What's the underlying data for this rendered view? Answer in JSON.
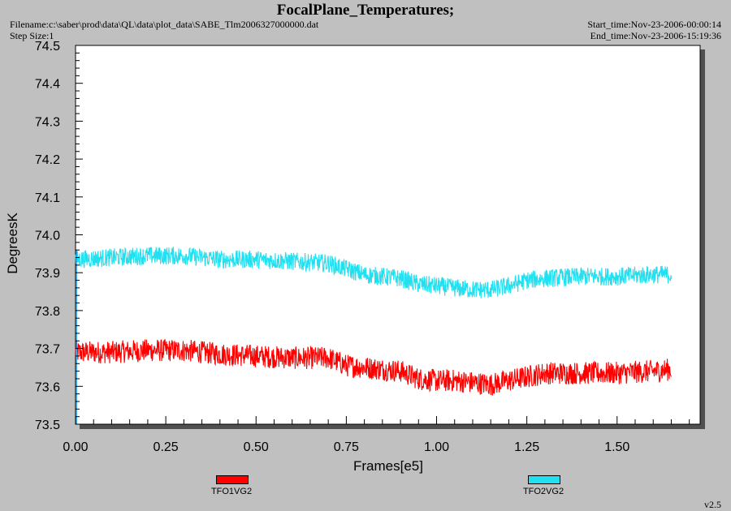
{
  "header": {
    "title": "FocalPlane_Temperatures;",
    "filename": "Filename:c:\\saber\\prod\\data\\QL\\data\\plot_data\\SABE_Tlm2006327000000.dat",
    "step_size": "Step Size:1",
    "start_time": "Start_time:Nov-23-2006-00:00:14",
    "end_time": "End_time:Nov-23-2006-15:19:36",
    "version": "v2.5"
  },
  "chart_data": {
    "type": "line",
    "title": "FocalPlane_Temperatures;",
    "xlabel": "Frames[e5]",
    "ylabel": "DegreesK",
    "xlim": [
      0,
      1.73
    ],
    "ylim": [
      73.5,
      74.5
    ],
    "xticks": [
      "0.00",
      "0.25",
      "0.50",
      "0.75",
      "1.00",
      "1.25",
      "1.50"
    ],
    "yticks": [
      "73.5",
      "73.6",
      "73.7",
      "73.8",
      "73.9",
      "74.0",
      "74.1",
      "74.2",
      "74.3",
      "74.4",
      "74.5"
    ],
    "grid": false,
    "legend_position": "bottom",
    "series": [
      {
        "name": "TFO1VG2",
        "color": "#ff0000",
        "x": [
          0,
          0.1,
          0.2,
          0.3,
          0.4,
          0.5,
          0.6,
          0.7,
          0.75,
          0.8,
          0.85,
          0.9,
          0.95,
          1.0,
          1.05,
          1.1,
          1.15,
          1.2,
          1.25,
          1.3,
          1.4,
          1.5,
          1.6,
          1.65
        ],
        "y": [
          73.69,
          73.69,
          73.695,
          73.695,
          73.685,
          73.68,
          73.675,
          73.675,
          73.655,
          73.65,
          73.645,
          73.64,
          73.62,
          73.615,
          73.615,
          73.61,
          73.605,
          73.615,
          73.625,
          73.635,
          73.635,
          73.635,
          73.64,
          73.645
        ],
        "noise": 0.03
      },
      {
        "name": "TFO2VG2",
        "color": "#22e0f0",
        "x": [
          0,
          0.1,
          0.2,
          0.3,
          0.4,
          0.5,
          0.6,
          0.7,
          0.75,
          0.8,
          0.85,
          0.9,
          0.95,
          1.0,
          1.05,
          1.1,
          1.15,
          1.2,
          1.25,
          1.3,
          1.4,
          1.5,
          1.6,
          1.65
        ],
        "y": [
          73.935,
          73.94,
          73.945,
          73.945,
          73.935,
          73.935,
          73.93,
          73.925,
          73.91,
          73.895,
          73.89,
          73.885,
          73.87,
          73.865,
          73.86,
          73.855,
          73.855,
          73.865,
          73.88,
          73.885,
          73.89,
          73.89,
          73.895,
          73.895
        ],
        "noise": 0.024
      }
    ]
  }
}
